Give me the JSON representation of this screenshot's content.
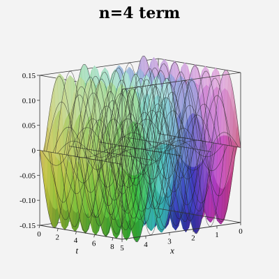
{
  "chart_data": {
    "type": "surface3d",
    "title": "n=4 term",
    "xlabel": "x",
    "tlabel": "t",
    "zlabel": "",
    "x_range": [
      0,
      5
    ],
    "t_range": [
      0,
      9
    ],
    "z_range": [
      -0.15,
      0.15
    ],
    "x_ticks": [
      "5",
      "4",
      "3",
      "2",
      "1",
      "0"
    ],
    "t_ticks": [
      "0",
      "2",
      "4",
      "6",
      "8"
    ],
    "z_ticks": [
      "0.15",
      "0.10",
      "0.05",
      "0",
      "-0.05",
      "-0.10",
      "-0.15"
    ],
    "amplitude": 0.16,
    "x_wave_cycles": 2,
    "t_wave_cycles": 8
  }
}
